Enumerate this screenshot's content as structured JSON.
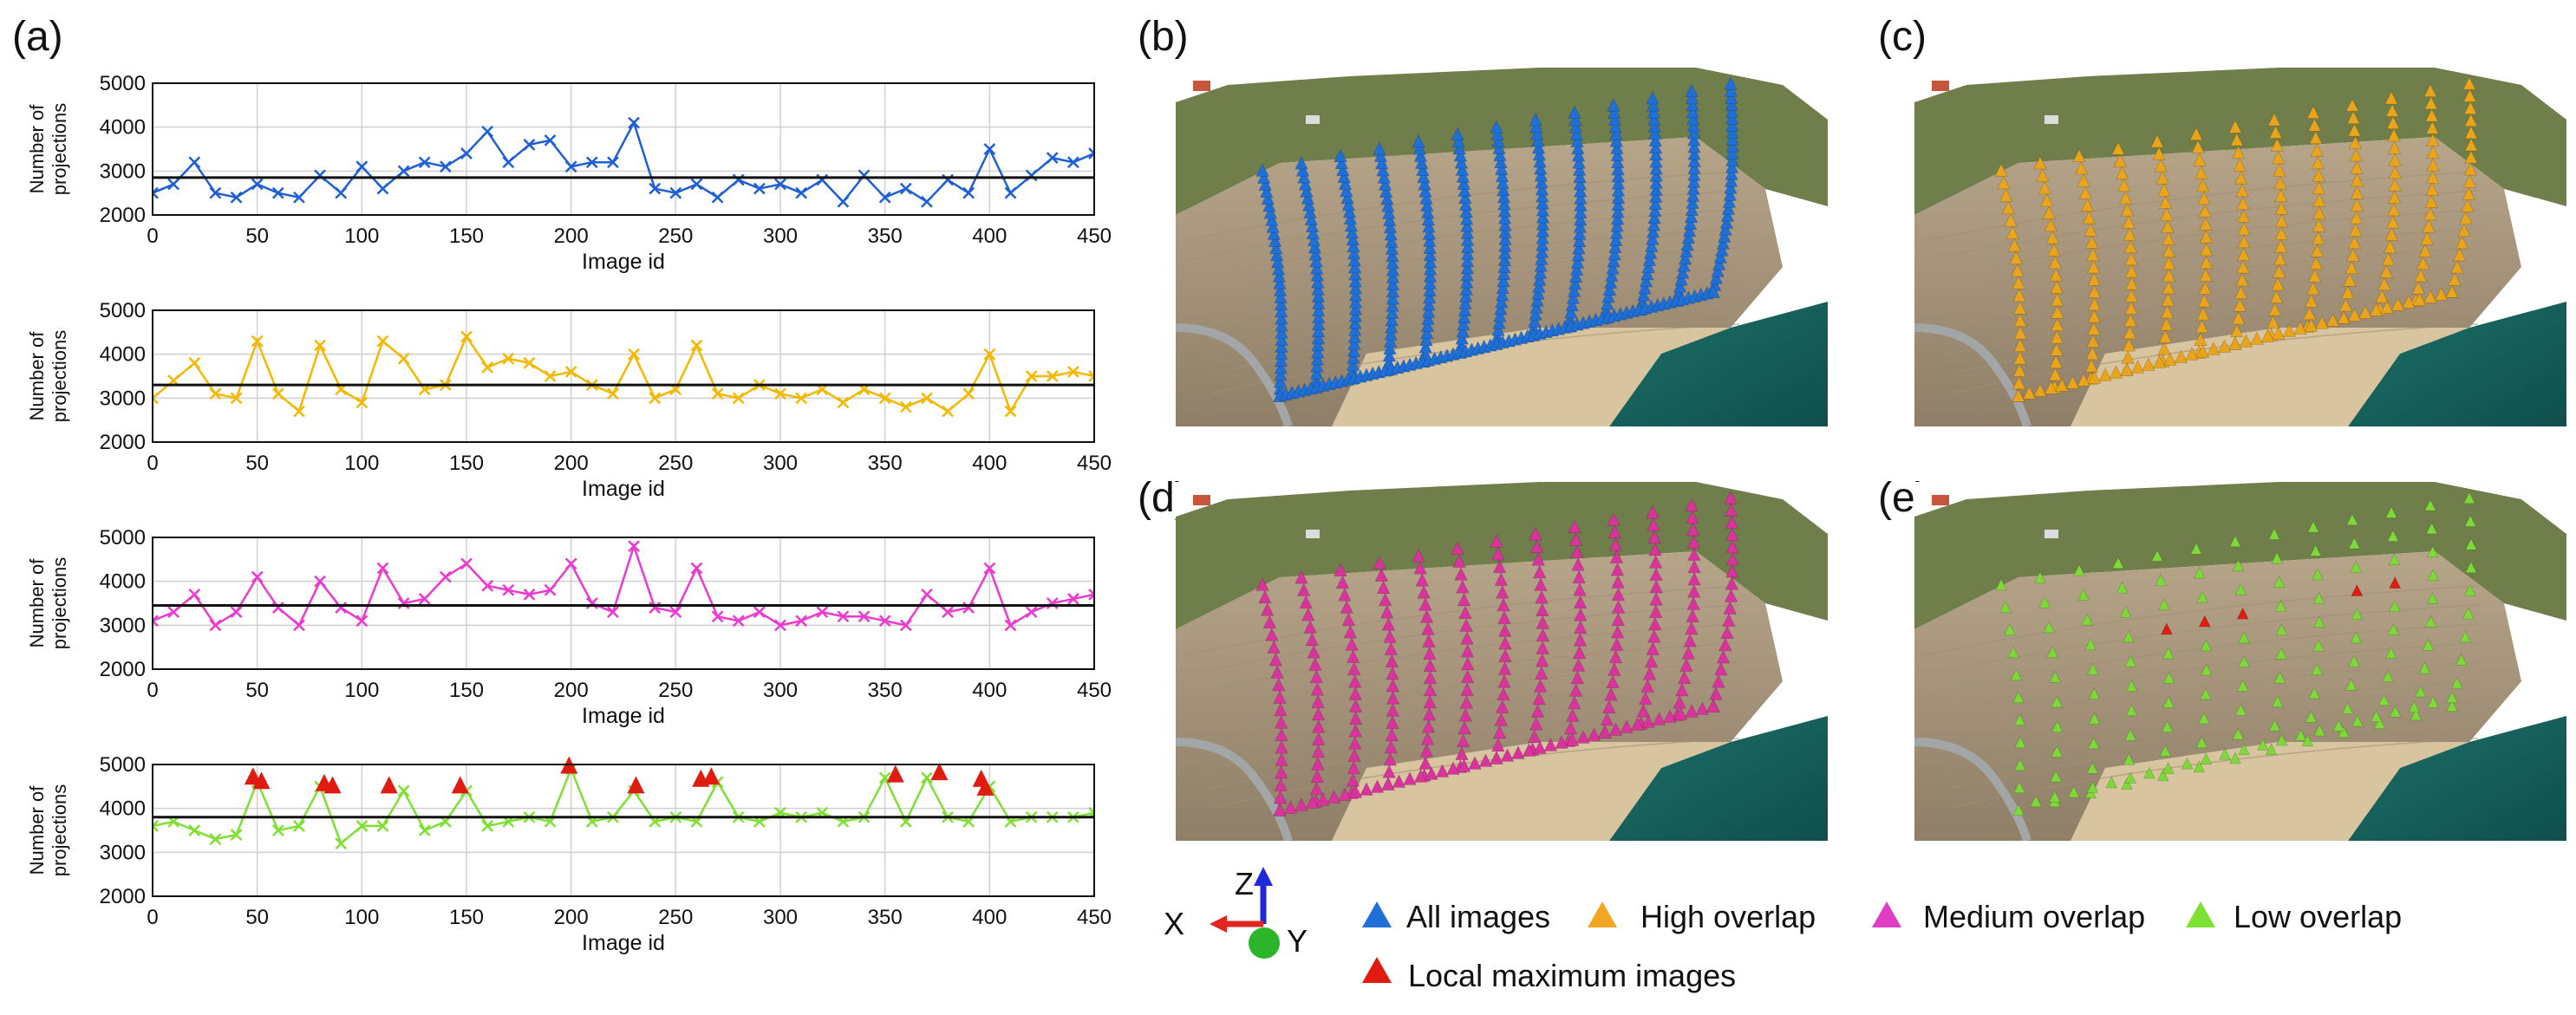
{
  "figure": {
    "panel_labels": [
      "(a)",
      "(b)",
      "(c)",
      "(d)",
      "(e)"
    ],
    "background": "#ffffff",
    "scene_colors": {
      "sky": "#ffffff",
      "vegetation": "#6f7e4a",
      "cliff_face": "#b7a58a",
      "cliff_shadow": "#8f7f68",
      "beach": "#d9c4a0",
      "sea": "#1e6f68",
      "sea_deep": "#0f4f4c",
      "road": "#a2a6a6"
    },
    "legend": {
      "axes": {
        "z": "Z",
        "x": "X",
        "y": "Y"
      },
      "axis_colors": {
        "z": "#1f2ad8",
        "x": "#e0261f",
        "y": "#2ab52a"
      },
      "items": [
        {
          "label": "All images",
          "color": "#1f6fd6",
          "icon": "triangle-icon"
        },
        {
          "label": "High overlap",
          "color": "#f2a623",
          "icon": "triangle-icon"
        },
        {
          "label": "Medium overlap",
          "color": "#e03dc5",
          "icon": "triangle-icon"
        },
        {
          "label": "Low overlap",
          "color": "#7fe034",
          "icon": "triangle-icon"
        },
        {
          "label": "Local maximum images",
          "color": "#e01b10",
          "icon": "triangle-icon"
        }
      ]
    },
    "scenes": [
      {
        "label": "(b)",
        "color": "#1f6fd6",
        "name": "All images"
      },
      {
        "label": "(c)",
        "color": "#e8a41c",
        "name": "High overlap"
      },
      {
        "label": "(d)",
        "color": "#d8349c",
        "name": "Medium overlap"
      },
      {
        "label": "(e)",
        "color": "#7ed83a",
        "name": "Low overlap",
        "local_max_color": "#e01b10"
      }
    ]
  },
  "chart_data": [
    {
      "type": "line",
      "panel": "(a)",
      "series": [
        {
          "name": "All images",
          "color": "#1f5fd6",
          "marker": "x",
          "x": [
            0,
            10,
            20,
            30,
            40,
            50,
            60,
            70,
            80,
            90,
            100,
            110,
            120,
            130,
            140,
            150,
            160,
            170,
            180,
            190,
            200,
            210,
            220,
            230,
            240,
            250,
            260,
            270,
            280,
            290,
            300,
            310,
            320,
            330,
            340,
            350,
            360,
            370,
            380,
            390,
            400,
            410,
            420,
            430,
            440,
            450
          ],
          "values": [
            2500,
            2700,
            3200,
            2500,
            2400,
            2700,
            2500,
            2400,
            2900,
            2500,
            3100,
            2600,
            3000,
            3200,
            3100,
            3400,
            3900,
            3200,
            3600,
            3700,
            3100,
            3200,
            3200,
            4100,
            2600,
            2500,
            2700,
            2400,
            2800,
            2600,
            2700,
            2500,
            2800,
            2300,
            2900,
            2400,
            2600,
            2300,
            2800,
            2500,
            3500,
            2500,
            2900,
            3300,
            3200,
            3400
          ]
        }
      ],
      "baseline": 2850,
      "xlabel": "Image id",
      "ylabel": "Number of projections",
      "xlim": [
        0,
        450
      ],
      "ylim": [
        2000,
        5000
      ],
      "xticks": [
        0,
        50,
        100,
        150,
        200,
        250,
        300,
        350,
        400,
        450
      ],
      "yticks": [
        2000,
        3000,
        4000,
        5000
      ],
      "grid": true
    },
    {
      "type": "line",
      "panel": "(a)",
      "series": [
        {
          "name": "High overlap",
          "color": "#f5b800",
          "marker": "x",
          "x": [
            0,
            10,
            20,
            30,
            40,
            50,
            60,
            70,
            80,
            90,
            100,
            110,
            120,
            130,
            140,
            150,
            160,
            170,
            180,
            190,
            200,
            210,
            220,
            230,
            240,
            250,
            260,
            270,
            280,
            290,
            300,
            310,
            320,
            330,
            340,
            350,
            360,
            370,
            380,
            390,
            400,
            410,
            420,
            430,
            440,
            450
          ],
          "values": [
            3000,
            3400,
            3800,
            3100,
            3000,
            4300,
            3100,
            2700,
            4200,
            3200,
            2900,
            4300,
            3900,
            3200,
            3300,
            4400,
            3700,
            3900,
            3800,
            3500,
            3600,
            3300,
            3100,
            4000,
            3000,
            3200,
            4200,
            3100,
            3000,
            3300,
            3100,
            3000,
            3200,
            2900,
            3200,
            3000,
            2800,
            3000,
            2700,
            3100,
            4000,
            2700,
            3500,
            3500,
            3600,
            3500
          ]
        }
      ],
      "baseline": 3300,
      "xlabel": "Image id",
      "ylabel": "Number of projections",
      "xlim": [
        0,
        450
      ],
      "ylim": [
        2000,
        5000
      ],
      "xticks": [
        0,
        50,
        100,
        150,
        200,
        250,
        300,
        350,
        400,
        450
      ],
      "yticks": [
        2000,
        3000,
        4000,
        5000
      ],
      "grid": true
    },
    {
      "type": "line",
      "panel": "(a)",
      "series": [
        {
          "name": "Medium overlap",
          "color": "#ec3ad0",
          "marker": "x",
          "x": [
            0,
            10,
            20,
            30,
            40,
            50,
            60,
            70,
            80,
            90,
            100,
            110,
            120,
            130,
            140,
            150,
            160,
            170,
            180,
            190,
            200,
            210,
            220,
            230,
            240,
            250,
            260,
            270,
            280,
            290,
            300,
            310,
            320,
            330,
            340,
            350,
            360,
            370,
            380,
            390,
            400,
            410,
            420,
            430,
            440,
            450
          ],
          "values": [
            3100,
            3300,
            3700,
            3000,
            3300,
            4100,
            3400,
            3000,
            4000,
            3400,
            3100,
            4300,
            3500,
            3600,
            4100,
            4400,
            3900,
            3800,
            3700,
            3800,
            4400,
            3500,
            3300,
            4800,
            3400,
            3300,
            4300,
            3200,
            3100,
            3300,
            3000,
            3100,
            3300,
            3200,
            3200,
            3100,
            3000,
            3700,
            3300,
            3400,
            4300,
            3000,
            3300,
            3500,
            3600,
            3700
          ]
        }
      ],
      "baseline": 3450,
      "xlabel": "Image id",
      "ylabel": "Number of projections",
      "xlim": [
        0,
        450
      ],
      "ylim": [
        2000,
        5000
      ],
      "xticks": [
        0,
        50,
        100,
        150,
        200,
        250,
        300,
        350,
        400,
        450
      ],
      "yticks": [
        2000,
        3000,
        4000,
        5000
      ],
      "grid": true
    },
    {
      "type": "line",
      "panel": "(a)",
      "series": [
        {
          "name": "Low overlap",
          "color": "#7fe034",
          "marker": "x",
          "x": [
            0,
            10,
            20,
            30,
            40,
            50,
            60,
            70,
            80,
            90,
            100,
            110,
            120,
            130,
            140,
            150,
            160,
            170,
            180,
            190,
            200,
            210,
            220,
            230,
            240,
            250,
            260,
            270,
            280,
            290,
            300,
            310,
            320,
            330,
            340,
            350,
            360,
            370,
            380,
            390,
            400,
            410,
            420,
            430,
            440,
            450
          ],
          "values": [
            3600,
            3700,
            3500,
            3300,
            3400,
            4600,
            3500,
            3600,
            4500,
            3200,
            3600,
            3600,
            4400,
            3500,
            3700,
            4400,
            3600,
            3700,
            3800,
            3700,
            4900,
            3700,
            3800,
            4400,
            3700,
            3800,
            3700,
            4600,
            3800,
            3700,
            3900,
            3800,
            3900,
            3700,
            3800,
            4700,
            3700,
            4700,
            3800,
            3700,
            4500,
            3700,
            3800,
            3800,
            3800,
            3900
          ]
        },
        {
          "name": "Local maximum images",
          "color": "#e01b10",
          "marker": "triangle",
          "x": [
            48,
            52,
            82,
            86,
            113,
            147,
            199,
            231,
            262,
            267,
            355,
            376,
            396,
            398
          ],
          "values": [
            4700,
            4600,
            4550,
            4500,
            4500,
            4500,
            4950,
            4500,
            4650,
            4700,
            4750,
            4800,
            4650,
            4450
          ]
        }
      ],
      "baseline": 3800,
      "xlabel": "Image id",
      "ylabel": "Number of projections",
      "xlim": [
        0,
        450
      ],
      "ylim": [
        2000,
        5000
      ],
      "xticks": [
        0,
        50,
        100,
        150,
        200,
        250,
        300,
        350,
        400,
        450
      ],
      "yticks": [
        2000,
        3000,
        4000,
        5000
      ],
      "grid": true
    }
  ]
}
